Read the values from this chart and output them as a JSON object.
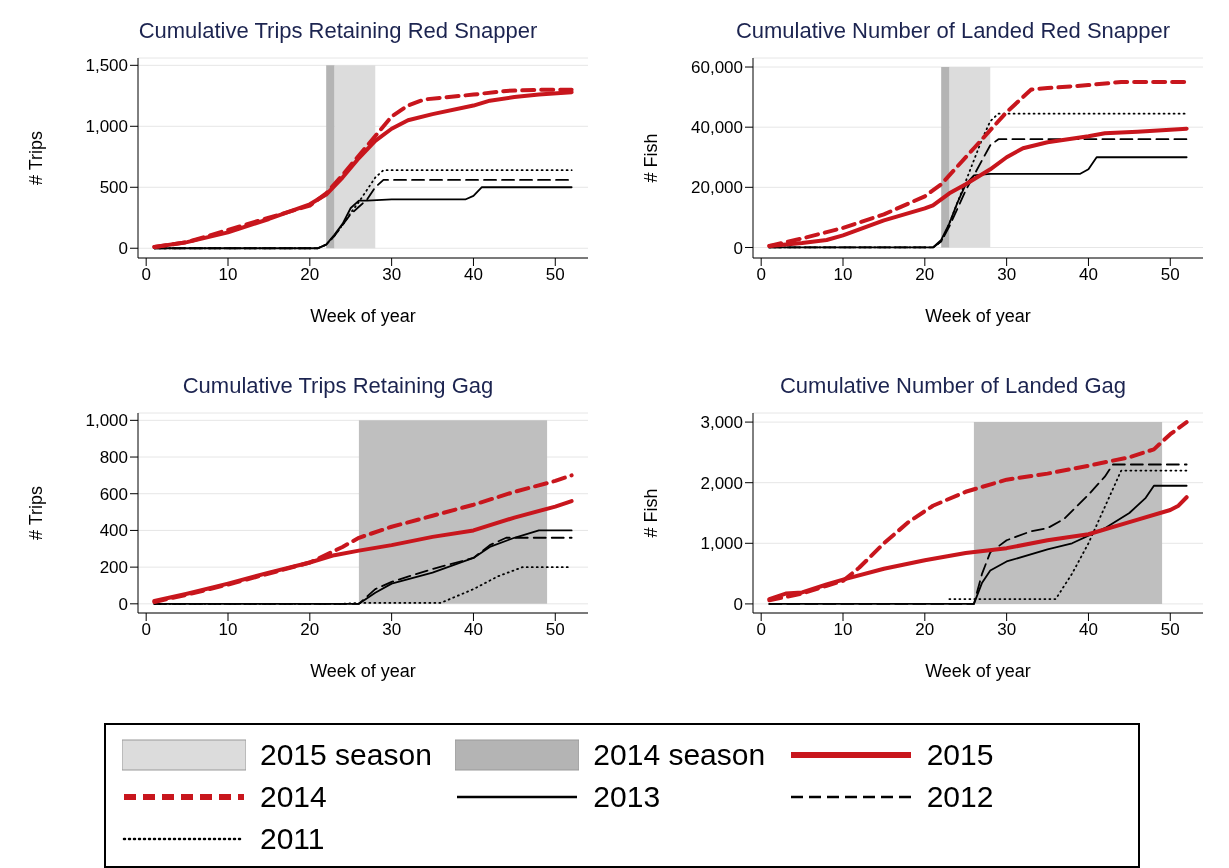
{
  "chart_data": [
    {
      "type": "line",
      "title": "Cumulative Trips Retaining Red Snapper",
      "xlabel": "Week of year",
      "ylabel": "# Trips",
      "xlim": [
        -1,
        54
      ],
      "xticks": [
        0,
        10,
        20,
        30,
        40,
        50
      ],
      "ylim": [
        -80,
        1560
      ],
      "yticks": [
        0,
        500,
        {
          "value": 1000,
          "label": "1,000"
        },
        {
          "value": 1500,
          "label": "1,500"
        }
      ],
      "grid": "y",
      "legend": "bottom",
      "bands": [
        {
          "axis": "x",
          "from": 23,
          "to": 28,
          "label": "2015 season",
          "color": "#dcdcdc"
        },
        {
          "axis": "x",
          "from": 22,
          "to": 23,
          "label": "2014 season",
          "color": "#b4b4b4"
        }
      ],
      "series": [
        {
          "name": "2015",
          "color": "#c8161d",
          "line_style": "solid",
          "x": [
            1,
            5,
            10,
            15,
            20,
            22,
            24,
            26,
            28,
            30,
            32,
            35,
            40,
            42,
            45,
            48,
            52
          ],
          "values": [
            10,
            50,
            130,
            240,
            360,
            440,
            580,
            740,
            880,
            980,
            1050,
            1100,
            1170,
            1210,
            1240,
            1260,
            1280
          ]
        },
        {
          "name": "2014",
          "color": "#c8161d",
          "line_style": "dashed",
          "x": [
            1,
            5,
            10,
            15,
            20,
            22,
            24,
            26,
            28,
            30,
            32,
            34,
            40,
            44,
            48,
            52
          ],
          "values": [
            10,
            50,
            150,
            250,
            350,
            450,
            600,
            760,
            920,
            1080,
            1170,
            1220,
            1260,
            1290,
            1300,
            1300
          ]
        },
        {
          "name": "2013",
          "color": "#000000",
          "line_style": "solid",
          "x": [
            1,
            21,
            22,
            23,
            24,
            25,
            26,
            27,
            30,
            35,
            39,
            40,
            41,
            52
          ],
          "values": [
            0,
            0,
            30,
            110,
            200,
            330,
            390,
            390,
            400,
            400,
            400,
            430,
            500,
            500
          ]
        },
        {
          "name": "2012",
          "color": "#000000",
          "line_style": "dashed",
          "x": [
            1,
            21,
            22,
            23,
            24,
            25,
            26,
            27,
            28,
            29,
            52
          ],
          "values": [
            0,
            0,
            30,
            100,
            190,
            280,
            340,
            400,
            500,
            560,
            560
          ]
        },
        {
          "name": "2011",
          "color": "#000000",
          "line_style": "dotted",
          "x": [
            1,
            21,
            22,
            23,
            24,
            25,
            26,
            27,
            28,
            29,
            52
          ],
          "values": [
            0,
            0,
            30,
            100,
            190,
            290,
            380,
            480,
            580,
            640,
            640
          ]
        }
      ]
    },
    {
      "type": "line",
      "title": "Cumulative Number of Landed Red Snapper",
      "xlabel": "Week of year",
      "ylabel": "# Fish",
      "xlim": [
        -1,
        54
      ],
      "xticks": [
        0,
        10,
        20,
        30,
        40,
        50
      ],
      "ylim": [
        -3500,
        63000
      ],
      "yticks": [
        0,
        {
          "value": 20000,
          "label": "20,000"
        },
        {
          "value": 40000,
          "label": "40,000"
        },
        {
          "value": 60000,
          "label": "60,000"
        }
      ],
      "grid": "y",
      "bands": [
        {
          "axis": "x",
          "from": 23,
          "to": 28,
          "color": "#dcdcdc"
        },
        {
          "axis": "x",
          "from": 22,
          "to": 23,
          "color": "#b4b4b4"
        }
      ],
      "series": [
        {
          "name": "2015",
          "color": "#c8161d",
          "line_style": "solid",
          "x": [
            1,
            5,
            8,
            10,
            15,
            20,
            21,
            23,
            25,
            28,
            30,
            32,
            35,
            40,
            42,
            46,
            52
          ],
          "values": [
            500,
            1500,
            2500,
            4000,
            9000,
            13000,
            14000,
            18000,
            21000,
            26000,
            30000,
            33000,
            35000,
            37000,
            38000,
            38500,
            39500
          ]
        },
        {
          "name": "2014",
          "color": "#c8161d",
          "line_style": "dashed",
          "x": [
            1,
            5,
            10,
            15,
            20,
            22,
            24,
            26,
            28,
            30,
            32,
            33,
            35,
            40,
            44,
            52
          ],
          "values": [
            500,
            3000,
            6500,
            11000,
            17000,
            21000,
            27000,
            33000,
            39000,
            45000,
            50000,
            52500,
            53000,
            54000,
            55000,
            55000
          ]
        },
        {
          "name": "2013",
          "color": "#000000",
          "line_style": "solid",
          "x": [
            1,
            21,
            22,
            23,
            24,
            25,
            26,
            28,
            39,
            40,
            41,
            52
          ],
          "values": [
            0,
            0,
            2500,
            8000,
            15000,
            21000,
            24000,
            24500,
            24500,
            26000,
            30000,
            30000
          ]
        },
        {
          "name": "2012",
          "color": "#000000",
          "line_style": "dashed",
          "x": [
            1,
            21,
            22,
            23,
            24,
            25,
            26,
            27,
            28,
            29,
            52
          ],
          "values": [
            0,
            0,
            2000,
            7000,
            13000,
            19000,
            24000,
            29000,
            34000,
            36000,
            36000
          ]
        },
        {
          "name": "2011",
          "color": "#000000",
          "line_style": "dotted",
          "x": [
            1,
            21,
            22,
            23,
            24,
            25,
            26,
            27,
            28,
            29,
            52
          ],
          "values": [
            0,
            0,
            2000,
            8000,
            15000,
            22000,
            29000,
            36000,
            42000,
            44500,
            44500
          ]
        }
      ]
    },
    {
      "type": "line",
      "title": "Cumulative Trips Retaining Gag",
      "xlabel": "Week of year",
      "ylabel": "# Trips",
      "xlim": [
        -1,
        54
      ],
      "xticks": [
        0,
        10,
        20,
        30,
        40,
        50
      ],
      "ylim": [
        -50,
        1040
      ],
      "yticks": [
        0,
        200,
        400,
        600,
        800,
        {
          "value": 1000,
          "label": "1,000"
        }
      ],
      "grid": "y",
      "bands": [
        {
          "axis": "x",
          "from": 26,
          "to": 49,
          "color": "#bfbfbf"
        }
      ],
      "series": [
        {
          "name": "2015",
          "color": "#c8161d",
          "line_style": "solid",
          "x": [
            1,
            5,
            10,
            15,
            20,
            23,
            26,
            30,
            35,
            40,
            45,
            50,
            52
          ],
          "values": [
            15,
            55,
            110,
            170,
            225,
            265,
            290,
            320,
            365,
            400,
            470,
            530,
            560
          ]
        },
        {
          "name": "2014",
          "color": "#c8161d",
          "line_style": "dashed",
          "x": [
            1,
            5,
            10,
            15,
            20,
            24,
            26,
            30,
            35,
            40,
            45,
            50,
            52
          ],
          "values": [
            10,
            50,
            105,
            165,
            225,
            310,
            360,
            420,
            480,
            540,
            610,
            670,
            700
          ]
        },
        {
          "name": "2013",
          "color": "#000000",
          "line_style": "solid",
          "x": [
            1,
            26,
            28,
            30,
            35,
            40,
            42,
            45,
            48,
            52
          ],
          "values": [
            0,
            0,
            60,
            110,
            170,
            250,
            310,
            360,
            400,
            400
          ]
        },
        {
          "name": "2012",
          "color": "#000000",
          "line_style": "dashed",
          "x": [
            1,
            26,
            28,
            30,
            35,
            40,
            42,
            44,
            52
          ],
          "values": [
            0,
            0,
            80,
            120,
            190,
            250,
            320,
            360,
            360
          ]
        },
        {
          "name": "2011",
          "color": "#000000",
          "line_style": "dotted",
          "x": [
            1,
            24,
            26,
            36,
            40,
            43,
            46,
            52
          ],
          "values": [
            0,
            0,
            5,
            5,
            80,
            150,
            200,
            200
          ]
        }
      ]
    },
    {
      "type": "line",
      "title": "Cumulative Number of Landed Gag",
      "xlabel": "Week of year",
      "ylabel": "# Fish",
      "xlim": [
        -1,
        54
      ],
      "xticks": [
        0,
        10,
        20,
        30,
        40,
        50
      ],
      "ylim": [
        -150,
        3150
      ],
      "yticks": [
        0,
        {
          "value": 1000,
          "label": "1,000"
        },
        {
          "value": 2000,
          "label": "2,000"
        },
        {
          "value": 3000,
          "label": "3,000"
        }
      ],
      "grid": "y",
      "bands": [
        {
          "axis": "x",
          "from": 26,
          "to": 49,
          "color": "#bfbfbf"
        }
      ],
      "series": [
        {
          "name": "2015",
          "color": "#c8161d",
          "line_style": "solid",
          "x": [
            1,
            3,
            5,
            8,
            10,
            15,
            20,
            25,
            30,
            35,
            40,
            45,
            50,
            51,
            52
          ],
          "values": [
            80,
            170,
            190,
            320,
            400,
            580,
            720,
            840,
            920,
            1050,
            1150,
            1350,
            1550,
            1620,
            1760
          ]
        },
        {
          "name": "2014",
          "color": "#c8161d",
          "line_style": "dashed",
          "x": [
            1,
            5,
            8,
            10,
            12,
            15,
            18,
            21,
            25,
            30,
            35,
            40,
            45,
            48,
            50,
            52
          ],
          "values": [
            60,
            170,
            300,
            380,
            600,
            1000,
            1350,
            1620,
            1850,
            2050,
            2150,
            2280,
            2420,
            2550,
            2800,
            3000
          ]
        },
        {
          "name": "2013",
          "color": "#000000",
          "line_style": "solid",
          "x": [
            1,
            26,
            27,
            28,
            30,
            35,
            38,
            42,
            45,
            47,
            48,
            52
          ],
          "values": [
            0,
            0,
            350,
            550,
            700,
            900,
            1000,
            1250,
            1500,
            1750,
            1950,
            1950
          ]
        },
        {
          "name": "2012",
          "color": "#000000",
          "line_style": "dashed",
          "x": [
            1,
            26,
            27,
            28,
            30,
            33,
            35,
            37,
            40,
            42,
            43,
            52
          ],
          "values": [
            0,
            0,
            500,
            850,
            1050,
            1200,
            1250,
            1400,
            1800,
            2100,
            2300,
            2300
          ]
        },
        {
          "name": "2011",
          "color": "#000000",
          "line_style": "dotted",
          "x": [
            23,
            26,
            36,
            38,
            40,
            42,
            44,
            52
          ],
          "values": [
            80,
            80,
            80,
            500,
            1000,
            1600,
            2200,
            2200
          ]
        }
      ]
    }
  ]
}
